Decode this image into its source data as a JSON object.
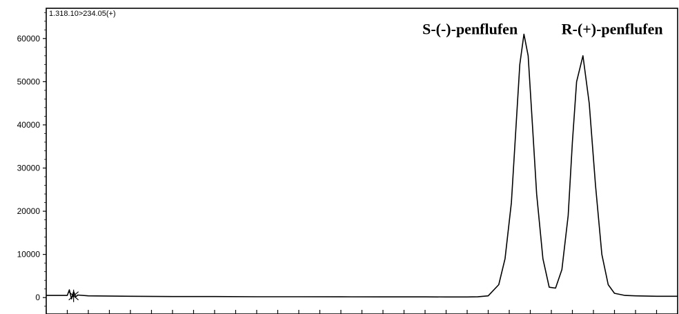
{
  "chart_data": {
    "type": "line",
    "title": "",
    "header_text": "1.318.10>234.05(+)",
    "xlabel": "",
    "ylabel": "",
    "ylim": [
      -3800,
      67000
    ],
    "yticks": [
      0,
      10000,
      20000,
      30000,
      40000,
      50000,
      60000
    ],
    "ytick_labels": [
      "0",
      "10000",
      "20000",
      "30000",
      "40000",
      "50000",
      "60000"
    ],
    "x_tick_count": 31,
    "xlim": [
      0,
      30
    ],
    "grid": false,
    "annotations": [
      {
        "text": "S-(-)-penflufen",
        "x": 22.4,
        "y": 61000
      },
      {
        "text": "R-(+)-penflufen",
        "x": 29.3,
        "y": 61000
      }
    ],
    "series": [
      {
        "x": [
          0,
          1.0,
          1.1,
          1.2,
          1.3,
          1.4,
          1.5,
          2,
          4,
          6,
          8,
          10,
          12,
          14,
          16,
          18,
          19,
          20,
          20.5,
          21.0,
          21.5,
          21.8,
          22.1,
          22.3,
          22.5,
          22.7,
          22.9,
          23.1,
          23.3,
          23.6,
          23.9,
          24.2,
          24.5,
          24.8,
          25.0,
          25.2,
          25.5,
          25.8,
          26.1,
          26.4,
          26.7,
          27.0,
          27.5,
          28.0,
          29.0,
          30.0
        ],
        "y": [
          500,
          500,
          1800,
          -300,
          1400,
          200,
          600,
          400,
          300,
          250,
          250,
          200,
          200,
          180,
          170,
          160,
          150,
          150,
          180,
          400,
          3000,
          9000,
          22000,
          38000,
          54000,
          61000,
          56000,
          40000,
          24000,
          9000,
          2400,
          2200,
          6500,
          19000,
          36000,
          50000,
          56000,
          45000,
          26000,
          10000,
          3000,
          1000,
          500,
          400,
          300,
          300
        ]
      }
    ]
  }
}
